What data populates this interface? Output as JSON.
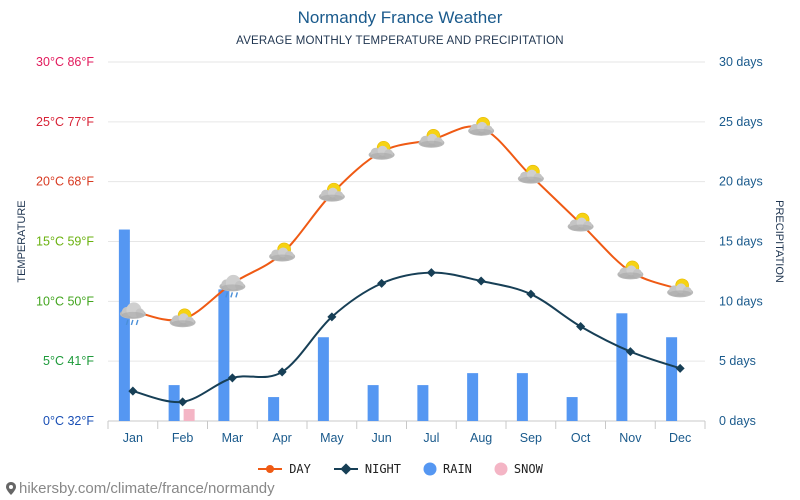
{
  "chart_data": {
    "type": "line",
    "title": "Normandy France Weather",
    "subtitle": "AVERAGE MONTHLY TEMPERATURE AND PRECIPITATION",
    "ylabel_left": "TEMPERATURE",
    "ylabel_right": "PRECIPITATION",
    "categories": [
      "Jan",
      "Feb",
      "Mar",
      "Apr",
      "May",
      "Jun",
      "Jul",
      "Aug",
      "Sep",
      "Oct",
      "Nov",
      "Dec"
    ],
    "y_left_ticks": [
      "0°C 32°F",
      "5°C 41°F",
      "10°C 50°F",
      "15°C 59°F",
      "20°C 68°F",
      "25°C 77°F",
      "30°C 86°F"
    ],
    "y_left_tick_colors": [
      "#1a4fb5",
      "#1e9a3a",
      "#43a51f",
      "#6ab20f",
      "#d83a22",
      "#d82236",
      "#e21a5c"
    ],
    "y_right_ticks": [
      "0 days",
      "5 days",
      "10 days",
      "15 days",
      "20 days",
      "25 days",
      "30 days"
    ],
    "ylim_temp": [
      0,
      30
    ],
    "ylim_days": [
      0,
      30
    ],
    "series": [
      {
        "name": "DAY",
        "color": "#ef5a14",
        "values": [
          9.2,
          8.5,
          11.5,
          14.0,
          19.0,
          22.5,
          23.5,
          24.5,
          20.5,
          16.5,
          12.5,
          11.0
        ]
      },
      {
        "name": "NIGHT",
        "color": "#173f56",
        "values": [
          2.5,
          1.6,
          3.6,
          4.1,
          8.7,
          11.5,
          12.4,
          11.7,
          10.6,
          7.9,
          5.8,
          4.4
        ]
      },
      {
        "name": "RAIN",
        "color": "#5597f2",
        "values": [
          16,
          3,
          11,
          2,
          7,
          3,
          3,
          4,
          4,
          2,
          9,
          7
        ]
      },
      {
        "name": "SNOW",
        "color": "#f4b5c5",
        "values": [
          0,
          1,
          0,
          0,
          0,
          0,
          0,
          0,
          0,
          0,
          0,
          0
        ]
      }
    ],
    "day_icons": [
      "cloud-rain",
      "cloud-sun",
      "cloud-rain",
      "cloud-sun",
      "cloud-sun",
      "cloud-sun",
      "cloud-sun",
      "cloud-sun",
      "cloud-sun",
      "cloud-sun",
      "cloud-sun",
      "cloud-sun"
    ]
  },
  "footer": {
    "text": "hikersby.com/climate/france/normandy"
  },
  "colors": {
    "axis": "#1a5a8c",
    "grid": "#e6e6e6"
  }
}
